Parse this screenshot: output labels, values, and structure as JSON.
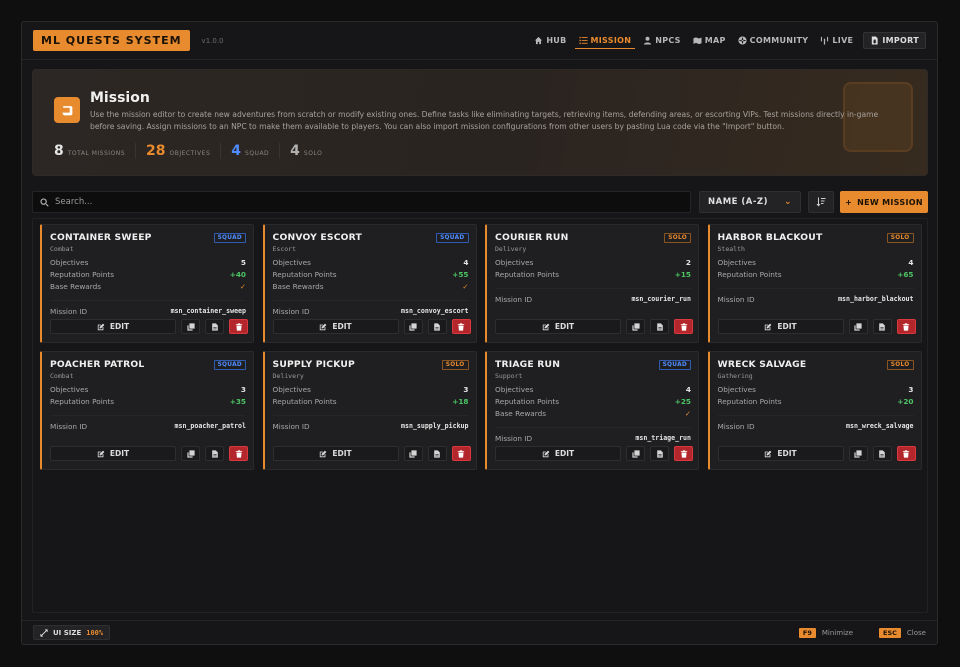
{
  "app": {
    "title": "ML QUESTS SYSTEM",
    "version": "v1.0.0"
  },
  "nav": [
    {
      "label": "HUB",
      "icon": "home-icon",
      "active": false
    },
    {
      "label": "MISSION",
      "icon": "list-icon",
      "active": true
    },
    {
      "label": "NPCS",
      "icon": "user-icon",
      "active": false
    },
    {
      "label": "MAP",
      "icon": "map-icon",
      "active": false
    },
    {
      "label": "COMMUNITY",
      "icon": "globe-icon",
      "active": false
    },
    {
      "label": "LIVE",
      "icon": "broadcast-icon",
      "active": false
    },
    {
      "label": "IMPORT",
      "icon": "import-icon",
      "active": false
    }
  ],
  "hero": {
    "title": "Mission",
    "description": "Use the mission editor to create new adventures from scratch or modify existing ones. Define tasks like eliminating targets, retrieving items, defending areas, or escorting VIPs. Test missions directly in-game before saving. Assign missions to an NPC to make them available to players. You can also import mission configurations from other users by pasting Lua code via the \"Import\" button.",
    "stats": [
      {
        "value": "8",
        "label": "TOTAL MISSIONS",
        "color": "#e6e6e6"
      },
      {
        "value": "28",
        "label": "OBJECTIVES",
        "color": "#e88a2e"
      },
      {
        "value": "4",
        "label": "SQUAD",
        "color": "#4f8cff"
      },
      {
        "value": "4",
        "label": "SOLO",
        "color": "#b0b0b0"
      }
    ]
  },
  "controls": {
    "search_placeholder": "Search...",
    "sort_label": "NAME (A-Z)",
    "new_mission_label": "NEW MISSION"
  },
  "labels": {
    "objectives": "Objectives",
    "reputation": "Reputation Points",
    "base_rewards": "Base Rewards",
    "mission_id": "Mission ID",
    "edit": "EDIT"
  },
  "missions": [
    {
      "title": "CONTAINER SWEEP",
      "category": "Combat",
      "type": "SQUAD",
      "objectives": "5",
      "reputation": "+40",
      "base_rewards": "✓",
      "id": "msn_container_sweep"
    },
    {
      "title": "CONVOY ESCORT",
      "category": "Escort",
      "type": "SQUAD",
      "objectives": "4",
      "reputation": "+55",
      "base_rewards": "✓",
      "id": "msn_convoy_escort"
    },
    {
      "title": "COURIER RUN",
      "category": "Delivery",
      "type": "SOLO",
      "objectives": "2",
      "reputation": "+15",
      "base_rewards": null,
      "id": "msn_courier_run"
    },
    {
      "title": "HARBOR BLACKOUT",
      "category": "Stealth",
      "type": "SOLO",
      "objectives": "4",
      "reputation": "+65",
      "base_rewards": null,
      "id": "msn_harbor_blackout"
    },
    {
      "title": "POACHER PATROL",
      "category": "Combat",
      "type": "SQUAD",
      "objectives": "3",
      "reputation": "+35",
      "base_rewards": null,
      "id": "msn_poacher_patrol"
    },
    {
      "title": "SUPPLY PICKUP",
      "category": "Delivery",
      "type": "SOLO",
      "objectives": "3",
      "reputation": "+18",
      "base_rewards": null,
      "id": "msn_supply_pickup"
    },
    {
      "title": "TRIAGE RUN",
      "category": "Support",
      "type": "SQUAD",
      "objectives": "4",
      "reputation": "+25",
      "base_rewards": "✓",
      "id": "msn_triage_run"
    },
    {
      "title": "WRECK SALVAGE",
      "category": "Gathering",
      "type": "SOLO",
      "objectives": "3",
      "reputation": "+20",
      "base_rewards": null,
      "id": "msn_wreck_salvage"
    }
  ],
  "footer": {
    "ui_size_label": "UI SIZE",
    "ui_size_value": "100%",
    "minimize_key": "F9",
    "minimize_label": "Minimize",
    "close_key": "ESC",
    "close_label": "Close"
  },
  "colors": {
    "accent": "#e88a2e",
    "squad": "#4f8cff",
    "positive": "#4cc464",
    "danger": "#b3262b"
  }
}
